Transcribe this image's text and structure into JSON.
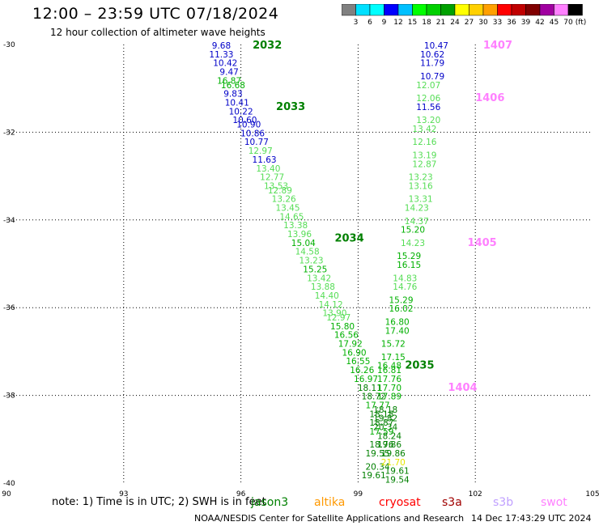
{
  "header": {
    "title": "12:00 – 23:59 UTC 07/18/2024",
    "subtitle": "12 hour collection of altimeter wave heights"
  },
  "colorbar": {
    "colors": [
      "#808080",
      "#00e0ff",
      "#00ffff",
      "#0000ff",
      "#00c0ff",
      "#00ff00",
      "#00d000",
      "#00a000",
      "#ffff00",
      "#ffd000",
      "#ffa000",
      "#ff0000",
      "#c00000",
      "#800000",
      "#a000a0",
      "#ff80ff",
      "#000000"
    ],
    "labels": [
      "3",
      "6",
      "9",
      "12",
      "15",
      "18",
      "21",
      "24",
      "27",
      "30",
      "33",
      "36",
      "39",
      "42",
      "45",
      "70"
    ],
    "unit": "(ft)"
  },
  "footer": {
    "note": "note:  1) Time is in UTC;  2) SWH is in feet",
    "credit": "NOAA/NESDIS Center for Satellite Applications and Research",
    "timestamp": "14 Dec 17:43:29 UTC 2024",
    "satellites": [
      {
        "name": "jason3",
        "color": "#008000"
      },
      {
        "name": "altika",
        "color": "#ff9900"
      },
      {
        "name": "cryosat",
        "color": "#ff0000"
      },
      {
        "name": "s3a",
        "color": "#a00000"
      },
      {
        "name": "s3b",
        "color": "#c0a0ff"
      },
      {
        "name": "swot",
        "color": "#ff80ff"
      }
    ]
  },
  "chart_data": {
    "type": "scatter",
    "xlim": [
      90,
      105
    ],
    "ylim": [
      -40,
      -30
    ],
    "xticks": [
      90,
      93,
      96,
      99,
      102,
      105
    ],
    "yticks": [
      -30,
      -32,
      -34,
      -36,
      -38,
      -40
    ],
    "grid": true,
    "time_labels": [
      {
        "text": "2032",
        "x": 96.3,
        "y": -30.0,
        "color": "#008000"
      },
      {
        "text": "2033",
        "x": 96.9,
        "y": -31.4,
        "color": "#008000"
      },
      {
        "text": "2034",
        "x": 98.4,
        "y": -34.4,
        "color": "#008000"
      },
      {
        "text": "2035",
        "x": 100.2,
        "y": -37.3,
        "color": "#008000"
      },
      {
        "text": "1407",
        "x": 102.2,
        "y": -30.0,
        "color": "#ff80ff"
      },
      {
        "text": "1406",
        "x": 102.0,
        "y": -31.2,
        "color": "#ff80ff"
      },
      {
        "text": "1405",
        "x": 101.8,
        "y": -34.5,
        "color": "#ff80ff"
      },
      {
        "text": "1404",
        "x": 101.3,
        "y": -37.8,
        "color": "#ff80ff"
      }
    ],
    "series": [
      {
        "name": "jason3",
        "points": [
          {
            "x": 95.5,
            "y": -30.0,
            "v": "9.68"
          },
          {
            "x": 95.5,
            "y": -30.2,
            "v": "11.33"
          },
          {
            "x": 95.6,
            "y": -30.4,
            "v": "10.42"
          },
          {
            "x": 95.7,
            "y": -30.6,
            "v": "9.47"
          },
          {
            "x": 95.7,
            "y": -30.8,
            "v": "16.87"
          },
          {
            "x": 95.8,
            "y": -30.9,
            "v": "16.68"
          },
          {
            "x": 95.8,
            "y": -31.1,
            "v": "9.83"
          },
          {
            "x": 95.9,
            "y": -31.3,
            "v": "10.41"
          },
          {
            "x": 96.0,
            "y": -31.5,
            "v": "10.22"
          },
          {
            "x": 96.1,
            "y": -31.7,
            "v": "10.60"
          },
          {
            "x": 96.2,
            "y": -31.8,
            "v": "10.90"
          },
          {
            "x": 96.3,
            "y": -32.0,
            "v": "10.86"
          },
          {
            "x": 96.4,
            "y": -32.2,
            "v": "10.77"
          },
          {
            "x": 96.5,
            "y": -32.4,
            "v": "12.97"
          },
          {
            "x": 96.6,
            "y": -32.6,
            "v": "11.63"
          },
          {
            "x": 96.7,
            "y": -32.8,
            "v": "13.40"
          },
          {
            "x": 96.8,
            "y": -33.0,
            "v": "12.77"
          },
          {
            "x": 96.9,
            "y": -33.2,
            "v": "13.53"
          },
          {
            "x": 97.0,
            "y": -33.3,
            "v": "12.89"
          },
          {
            "x": 97.1,
            "y": -33.5,
            "v": "13.26"
          },
          {
            "x": 97.2,
            "y": -33.7,
            "v": "13.45"
          },
          {
            "x": 97.3,
            "y": -33.9,
            "v": "14.65"
          },
          {
            "x": 97.4,
            "y": -34.1,
            "v": "13.38"
          },
          {
            "x": 97.5,
            "y": -34.3,
            "v": "13.96"
          },
          {
            "x": 97.6,
            "y": -34.5,
            "v": "15.04"
          },
          {
            "x": 97.7,
            "y": -34.7,
            "v": "14.58"
          },
          {
            "x": 97.8,
            "y": -34.9,
            "v": "13.23"
          },
          {
            "x": 97.9,
            "y": -35.1,
            "v": "15.25"
          },
          {
            "x": 98.0,
            "y": -35.3,
            "v": "13.42"
          },
          {
            "x": 98.1,
            "y": -35.5,
            "v": "13.88"
          },
          {
            "x": 98.2,
            "y": -35.7,
            "v": "14.40"
          },
          {
            "x": 98.3,
            "y": -35.9,
            "v": "14.12"
          },
          {
            "x": 98.4,
            "y": -36.1,
            "v": "13.90"
          },
          {
            "x": 98.5,
            "y": -36.2,
            "v": "12.97"
          },
          {
            "x": 98.6,
            "y": -36.4,
            "v": "15.80"
          },
          {
            "x": 98.7,
            "y": -36.6,
            "v": "16.56"
          },
          {
            "x": 98.8,
            "y": -36.8,
            "v": "17.92"
          },
          {
            "x": 98.9,
            "y": -37.0,
            "v": "16.90"
          },
          {
            "x": 99.0,
            "y": -37.2,
            "v": "16.55"
          },
          {
            "x": 99.1,
            "y": -37.4,
            "v": "16.26"
          },
          {
            "x": 99.2,
            "y": -37.6,
            "v": "16.97"
          },
          {
            "x": 99.3,
            "y": -37.8,
            "v": "18.11"
          },
          {
            "x": 99.4,
            "y": -38.0,
            "v": "18.72"
          },
          {
            "x": 99.5,
            "y": -38.2,
            "v": "17.77"
          },
          {
            "x": 99.6,
            "y": -38.4,
            "v": "18.18"
          },
          {
            "x": 99.6,
            "y": -38.6,
            "v": "18.87"
          },
          {
            "x": 99.6,
            "y": -38.8,
            "v": "17.59"
          },
          {
            "x": 99.6,
            "y": -39.1,
            "v": "18.76"
          },
          {
            "x": 99.5,
            "y": -39.3,
            "v": "19.55"
          },
          {
            "x": 99.5,
            "y": -39.6,
            "v": "20.34"
          },
          {
            "x": 99.4,
            "y": -39.8,
            "v": "19.61"
          }
        ]
      },
      {
        "name": "swot",
        "points": [
          {
            "x": 101.0,
            "y": -30.0,
            "v": "10.47"
          },
          {
            "x": 100.9,
            "y": -30.2,
            "v": "10.62"
          },
          {
            "x": 100.9,
            "y": -30.4,
            "v": "11.79"
          },
          {
            "x": 100.9,
            "y": -30.7,
            "v": "10.79"
          },
          {
            "x": 100.8,
            "y": -30.9,
            "v": "12.07"
          },
          {
            "x": 100.8,
            "y": -31.2,
            "v": "12.06"
          },
          {
            "x": 100.8,
            "y": -31.4,
            "v": "11.56"
          },
          {
            "x": 100.8,
            "y": -31.7,
            "v": "13.20"
          },
          {
            "x": 100.7,
            "y": -31.9,
            "v": "13.42"
          },
          {
            "x": 100.7,
            "y": -32.2,
            "v": "12.16"
          },
          {
            "x": 100.7,
            "y": -32.5,
            "v": "13.19"
          },
          {
            "x": 100.7,
            "y": -32.7,
            "v": "12.87"
          },
          {
            "x": 100.6,
            "y": -33.0,
            "v": "13.23"
          },
          {
            "x": 100.6,
            "y": -33.2,
            "v": "13.16"
          },
          {
            "x": 100.6,
            "y": -33.5,
            "v": "13.31"
          },
          {
            "x": 100.5,
            "y": -33.7,
            "v": "14.23"
          },
          {
            "x": 100.5,
            "y": -34.0,
            "v": "14.37"
          },
          {
            "x": 100.4,
            "y": -34.2,
            "v": "15.20"
          },
          {
            "x": 100.4,
            "y": -34.5,
            "v": "14.23"
          },
          {
            "x": 100.3,
            "y": -34.8,
            "v": "15.29"
          },
          {
            "x": 100.3,
            "y": -35.0,
            "v": "16.15"
          },
          {
            "x": 100.2,
            "y": -35.3,
            "v": "14.83"
          },
          {
            "x": 100.2,
            "y": -35.5,
            "v": "14.76"
          },
          {
            "x": 100.1,
            "y": -35.8,
            "v": "15.29"
          },
          {
            "x": 100.1,
            "y": -36.0,
            "v": "16.02"
          },
          {
            "x": 100.0,
            "y": -36.3,
            "v": "16.80"
          },
          {
            "x": 100.0,
            "y": -36.5,
            "v": "17.40"
          },
          {
            "x": 99.9,
            "y": -36.8,
            "v": "15.72"
          },
          {
            "x": 99.9,
            "y": -37.1,
            "v": "17.15"
          },
          {
            "x": 99.8,
            "y": -37.3,
            "v": "16.48"
          },
          {
            "x": 99.8,
            "y": -37.4,
            "v": "16.81"
          },
          {
            "x": 99.8,
            "y": -37.6,
            "v": "17.76"
          },
          {
            "x": 99.8,
            "y": -37.8,
            "v": "17.70"
          },
          {
            "x": 99.8,
            "y": -38.0,
            "v": "17.89"
          },
          {
            "x": 99.7,
            "y": -38.3,
            "v": "18.18"
          },
          {
            "x": 99.7,
            "y": -38.5,
            "v": "19.82"
          },
          {
            "x": 99.7,
            "y": -38.7,
            "v": "20.34"
          },
          {
            "x": 99.8,
            "y": -38.9,
            "v": "18.24"
          },
          {
            "x": 99.8,
            "y": -39.1,
            "v": "19.86"
          },
          {
            "x": 99.9,
            "y": -39.3,
            "v": "19.86"
          },
          {
            "x": 99.9,
            "y": -39.5,
            "v": "21.70"
          },
          {
            "x": 100.0,
            "y": -39.7,
            "v": "19.61"
          },
          {
            "x": 100.0,
            "y": -39.9,
            "v": "19.54"
          }
        ]
      }
    ]
  }
}
